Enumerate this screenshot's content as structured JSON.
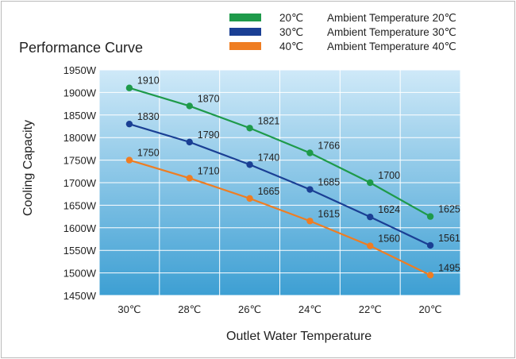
{
  "chart_data": {
    "type": "line",
    "title": "Performance Curve",
    "xlabel": "Outlet Water Temperature",
    "ylabel": "Cooling Capacity",
    "categories": [
      "30℃",
      "28℃",
      "26℃",
      "24℃",
      "22℃",
      "20℃"
    ],
    "yticks": [
      "1950W",
      "1900W",
      "1850W",
      "1800W",
      "1750W",
      "1700W",
      "1650W",
      "1600W",
      "1550W",
      "1500W",
      "1450W"
    ],
    "ylim": [
      1450,
      1950
    ],
    "grid": true,
    "legend_position": "top-right",
    "series": [
      {
        "name": "Ambient Temperature 20℃",
        "legend_key": "20℃",
        "color": "#1e9a4a",
        "values": [
          1910,
          1870,
          1821,
          1766,
          1700,
          1625
        ]
      },
      {
        "name": "Ambient Temperature 30℃",
        "legend_key": "30℃",
        "color": "#1a3f94",
        "values": [
          1830,
          1790,
          1740,
          1685,
          1624,
          1561
        ]
      },
      {
        "name": "Ambient Temperature 40℃",
        "legend_key": "40℃",
        "color": "#ef7d22",
        "values": [
          1750,
          1710,
          1665,
          1615,
          1560,
          1495
        ]
      }
    ]
  }
}
